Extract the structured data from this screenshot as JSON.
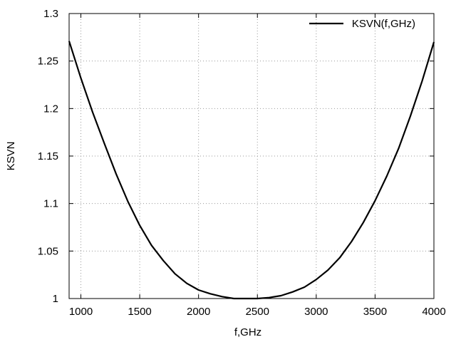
{
  "chart_data": {
    "type": "line",
    "title": "",
    "xlabel": "f,GHz",
    "ylabel": "KSVN",
    "xlim": [
      900,
      4000
    ],
    "ylim": [
      1,
      1.3
    ],
    "xticks": [
      "1000",
      "1500",
      "2000",
      "2500",
      "3000",
      "3500",
      "4000"
    ],
    "yticks": [
      "1",
      "1.05",
      "1.1",
      "1.15",
      "1.2",
      "1.25",
      "1.3"
    ],
    "grid": true,
    "legend_position": "top-right",
    "series": [
      {
        "name": "KSVN(f,GHz)",
        "color": "#000000",
        "x": [
          900,
          1000,
          1100,
          1200,
          1300,
          1400,
          1500,
          1600,
          1700,
          1800,
          1900,
          2000,
          2100,
          2200,
          2300,
          2400,
          2500,
          2600,
          2700,
          2800,
          2900,
          3000,
          3100,
          3200,
          3300,
          3400,
          3500,
          3600,
          3700,
          3800,
          3900,
          4000
        ],
        "y": [
          1.271,
          1.232,
          1.196,
          1.163,
          1.131,
          1.102,
          1.077,
          1.056,
          1.04,
          1.026,
          1.016,
          1.009,
          1.005,
          1.002,
          1.0,
          1.0,
          1.0,
          1.001,
          1.003,
          1.007,
          1.012,
          1.02,
          1.03,
          1.043,
          1.06,
          1.08,
          1.103,
          1.129,
          1.158,
          1.192,
          1.229,
          1.27
        ]
      }
    ]
  }
}
